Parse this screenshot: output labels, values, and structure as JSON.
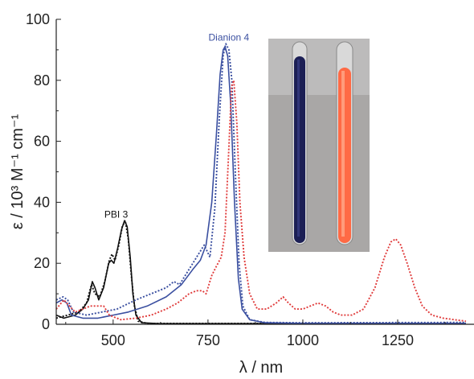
{
  "chart_data": {
    "type": "line",
    "xlabel": "λ / nm",
    "ylabel": "ε / 10³ M⁻¹ cm⁻¹",
    "xlim": [
      350,
      1430
    ],
    "ylim": [
      0,
      100
    ],
    "x_ticks": [
      500,
      750,
      1000,
      1250
    ],
    "y_ticks": [
      0,
      20,
      40,
      60,
      80,
      100
    ],
    "grid": false,
    "annotations": [
      {
        "text": "PBI 3",
        "x": 508,
        "y": 35,
        "color": "#111111"
      },
      {
        "text": "Dianion 4",
        "x": 805,
        "y": 93,
        "color": "#3a4fa0"
      }
    ],
    "inset_photo": {
      "description_colors": [
        "#1c1f55",
        "#ff6a45"
      ],
      "background": "#a9a7a6"
    },
    "series": [
      {
        "color": "#111111",
        "style": "solid",
        "points": [
          [
            350,
            3
          ],
          [
            370,
            2
          ],
          [
            400,
            3
          ],
          [
            420,
            5
          ],
          [
            435,
            8
          ],
          [
            445,
            14
          ],
          [
            452,
            12
          ],
          [
            462,
            8
          ],
          [
            475,
            12
          ],
          [
            488,
            20
          ],
          [
            495,
            21
          ],
          [
            502,
            20
          ],
          [
            512,
            25
          ],
          [
            522,
            31
          ],
          [
            530,
            34
          ],
          [
            537,
            32
          ],
          [
            545,
            22
          ],
          [
            552,
            10
          ],
          [
            560,
            3
          ],
          [
            575,
            0.5
          ],
          [
            620,
            0.2
          ],
          [
            1430,
            0.2
          ]
        ]
      },
      {
        "color": "#111111",
        "style": "dotted",
        "points": [
          [
            350,
            2
          ],
          [
            380,
            3
          ],
          [
            410,
            4
          ],
          [
            430,
            7
          ],
          [
            443,
            13
          ],
          [
            452,
            10
          ],
          [
            465,
            9
          ],
          [
            478,
            14
          ],
          [
            490,
            21
          ],
          [
            497,
            23
          ],
          [
            505,
            21
          ],
          [
            515,
            26
          ],
          [
            524,
            32
          ],
          [
            532,
            34
          ],
          [
            540,
            28
          ],
          [
            548,
            16
          ],
          [
            556,
            6
          ],
          [
            566,
            1
          ],
          [
            590,
            0.3
          ],
          [
            1430,
            0.3
          ]
        ]
      },
      {
        "color": "#3a4fa0",
        "style": "solid",
        "points": [
          [
            350,
            7
          ],
          [
            365,
            8
          ],
          [
            378,
            7
          ],
          [
            390,
            3
          ],
          [
            420,
            2
          ],
          [
            460,
            2
          ],
          [
            500,
            3
          ],
          [
            540,
            4
          ],
          [
            590,
            6
          ],
          [
            640,
            9
          ],
          [
            680,
            13
          ],
          [
            710,
            18
          ],
          [
            730,
            21
          ],
          [
            745,
            26
          ],
          [
            760,
            40
          ],
          [
            772,
            62
          ],
          [
            782,
            82
          ],
          [
            790,
            90
          ],
          [
            795,
            91
          ],
          [
            802,
            88
          ],
          [
            810,
            72
          ],
          [
            820,
            40
          ],
          [
            830,
            15
          ],
          [
            840,
            5
          ],
          [
            860,
            1.5
          ],
          [
            900,
            0.5
          ],
          [
            1000,
            0.3
          ],
          [
            1430,
            0.3
          ]
        ]
      },
      {
        "color": "#3a4fa0",
        "style": "dotted",
        "points": [
          [
            350,
            8
          ],
          [
            368,
            9
          ],
          [
            380,
            8
          ],
          [
            395,
            4
          ],
          [
            430,
            3
          ],
          [
            470,
            4
          ],
          [
            510,
            5
          ],
          [
            560,
            8
          ],
          [
            600,
            10
          ],
          [
            640,
            12
          ],
          [
            660,
            14
          ],
          [
            675,
            13
          ],
          [
            700,
            18
          ],
          [
            725,
            23
          ],
          [
            740,
            26
          ],
          [
            755,
            22
          ],
          [
            768,
            38
          ],
          [
            780,
            68
          ],
          [
            790,
            88
          ],
          [
            797,
            92
          ],
          [
            805,
            90
          ],
          [
            813,
            80
          ],
          [
            822,
            50
          ],
          [
            832,
            20
          ],
          [
            842,
            6
          ],
          [
            860,
            1.5
          ],
          [
            900,
            0.6
          ],
          [
            1000,
            0.5
          ],
          [
            1430,
            0.6
          ]
        ]
      },
      {
        "color": "#e03c3c",
        "style": "dotted",
        "points": [
          [
            350,
            5
          ],
          [
            370,
            8
          ],
          [
            385,
            6
          ],
          [
            400,
            4
          ],
          [
            420,
            5
          ],
          [
            440,
            6
          ],
          [
            460,
            6
          ],
          [
            475,
            6
          ],
          [
            490,
            3
          ],
          [
            520,
            1.5
          ],
          [
            560,
            2
          ],
          [
            600,
            3
          ],
          [
            640,
            5
          ],
          [
            670,
            7
          ],
          [
            700,
            10
          ],
          [
            720,
            11
          ],
          [
            735,
            11
          ],
          [
            745,
            10
          ],
          [
            760,
            16
          ],
          [
            772,
            19
          ],
          [
            785,
            22
          ],
          [
            795,
            30
          ],
          [
            805,
            58
          ],
          [
            812,
            78
          ],
          [
            818,
            80
          ],
          [
            826,
            66
          ],
          [
            834,
            40
          ],
          [
            845,
            22
          ],
          [
            860,
            10
          ],
          [
            880,
            5
          ],
          [
            905,
            5
          ],
          [
            930,
            7
          ],
          [
            948,
            9
          ],
          [
            962,
            7
          ],
          [
            980,
            5
          ],
          [
            1000,
            5
          ],
          [
            1020,
            6
          ],
          [
            1040,
            7
          ],
          [
            1060,
            6
          ],
          [
            1080,
            4
          ],
          [
            1100,
            3
          ],
          [
            1130,
            3
          ],
          [
            1160,
            5
          ],
          [
            1190,
            12
          ],
          [
            1215,
            22
          ],
          [
            1232,
            27
          ],
          [
            1245,
            28
          ],
          [
            1258,
            26
          ],
          [
            1275,
            20
          ],
          [
            1295,
            12
          ],
          [
            1315,
            6
          ],
          [
            1340,
            3
          ],
          [
            1370,
            2
          ],
          [
            1400,
            1.5
          ],
          [
            1430,
            1
          ]
        ]
      }
    ]
  }
}
